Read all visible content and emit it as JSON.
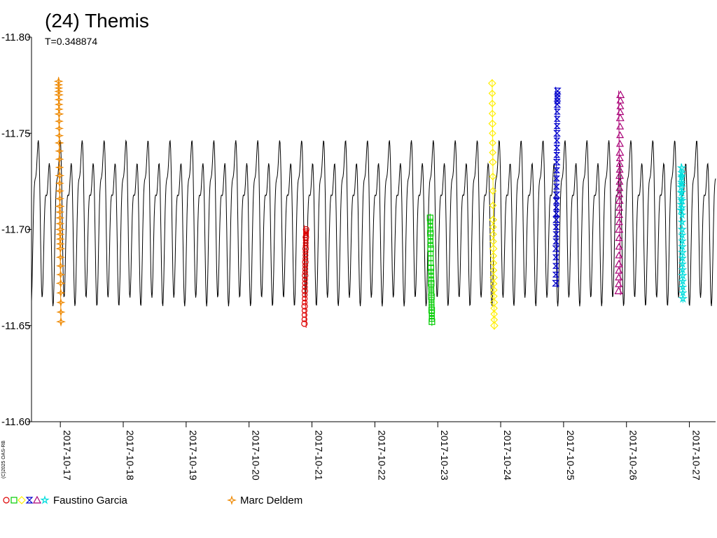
{
  "chart_data": {
    "type": "scatter",
    "title": "(24) Themis",
    "subtitle": "T=0.348874",
    "copyright": "(C)2025 OAS-RB",
    "ylim": [
      -11.8,
      -11.6
    ],
    "y_reversed": true,
    "yticks": [
      "-11.80",
      "-11.75",
      "-11.70",
      "-11.65",
      "-11.60"
    ],
    "xlim": [
      "2017-10-16T13:00",
      "2017-10-27T10:00"
    ],
    "xticks": [
      "2017-10-17",
      "2017-10-18",
      "2017-10-19",
      "2017-10-20",
      "2017-10-21",
      "2017-10-22",
      "2017-10-23",
      "2017-10-24",
      "2017-10-25",
      "2017-10-26",
      "2017-10-27"
    ],
    "grid": false,
    "model_curve": {
      "color": "#000000",
      "mean": -11.708,
      "period_days": 0.348874,
      "harmonics": [
        {
          "amp": 0.033,
          "order": 2,
          "phase": 0.0
        },
        {
          "amp": 0.014,
          "order": 4,
          "phase": 0.7
        },
        {
          "amp": 0.006,
          "order": 1,
          "phase": 1.3
        }
      ]
    },
    "series": [
      {
        "observer": "Faustino Garcia",
        "symbol": "circle",
        "color": "#dd0000",
        "x": [
          "2017-10-20T21:07",
          "2017-10-20T21:12",
          "2017-10-20T21:17",
          "2017-10-20T21:23",
          "2017-10-20T21:29",
          "2017-10-20T21:35",
          "2017-10-20T21:41",
          "2017-10-20T21:47"
        ],
        "y": [
          -11.651,
          -11.66,
          -11.668,
          -11.676,
          -11.683,
          -11.69,
          -11.696,
          -11.7
        ]
      },
      {
        "observer": "Faustino Garcia",
        "symbol": "square",
        "color": "#00cc00",
        "x": [
          "2017-10-22T21:05",
          "2017-10-22T21:11",
          "2017-10-22T21:17",
          "2017-10-22T21:23",
          "2017-10-22T21:29",
          "2017-10-22T21:35",
          "2017-10-22T21:41",
          "2017-10-22T21:46"
        ],
        "y": [
          -11.706,
          -11.698,
          -11.69,
          -11.68,
          -11.672,
          -11.665,
          -11.658,
          -11.652
        ]
      },
      {
        "observer": "Faustino Garcia",
        "symbol": "diamond",
        "color": "#ffee00",
        "x": [
          "2017-10-23T20:45",
          "2017-10-23T20:52",
          "2017-10-23T20:59",
          "2017-10-23T21:06",
          "2017-10-23T21:13",
          "2017-10-23T21:20",
          "2017-10-23T21:27",
          "2017-10-23T21:34"
        ],
        "y": [
          -11.776,
          -11.755,
          -11.735,
          -11.705,
          -11.69,
          -11.675,
          -11.662,
          -11.65
        ]
      },
      {
        "observer": "Faustino Garcia",
        "symbol": "bowtie",
        "color": "#0000cc",
        "x": [
          "2017-10-24T21:00",
          "2017-10-24T21:06",
          "2017-10-24T21:12",
          "2017-10-24T21:18",
          "2017-10-24T21:24",
          "2017-10-24T21:30",
          "2017-10-24T21:36",
          "2017-10-24T21:42"
        ],
        "y": [
          -11.672,
          -11.69,
          -11.705,
          -11.718,
          -11.735,
          -11.75,
          -11.765,
          -11.772
        ]
      },
      {
        "observer": "Faustino Garcia",
        "symbol": "triangle",
        "color": "#aa0077",
        "x": [
          "2017-10-25T21:00",
          "2017-10-25T21:06",
          "2017-10-25T21:12",
          "2017-10-25T21:18",
          "2017-10-25T21:24",
          "2017-10-25T21:30",
          "2017-10-25T21:36",
          "2017-10-25T21:42"
        ],
        "y": [
          -11.668,
          -11.682,
          -11.7,
          -11.715,
          -11.728,
          -11.74,
          -11.758,
          -11.77
        ]
      },
      {
        "observer": "Faustino Garcia",
        "symbol": "star",
        "color": "#00dddd",
        "x": [
          "2017-10-26T20:50",
          "2017-10-26T20:56",
          "2017-10-26T21:02",
          "2017-10-26T21:08",
          "2017-10-26T21:14",
          "2017-10-26T21:20",
          "2017-10-26T21:26",
          "2017-10-26T21:32"
        ],
        "y": [
          -11.71,
          -11.722,
          -11.732,
          -11.715,
          -11.7,
          -11.688,
          -11.676,
          -11.664
        ]
      },
      {
        "observer": "Marc Deldem",
        "symbol": "sparkle",
        "color": "#ee8800",
        "x": [
          "2017-10-16T23:20",
          "2017-10-16T23:26",
          "2017-10-16T23:32",
          "2017-10-16T23:38",
          "2017-10-16T23:44",
          "2017-10-16T23:50",
          "2017-10-16T23:56",
          "2017-10-17T00:02",
          "2017-10-17T00:08",
          "2017-10-17T00:14"
        ],
        "y": [
          -11.777,
          -11.77,
          -11.76,
          -11.745,
          -11.728,
          -11.712,
          -11.7,
          -11.69,
          -11.672,
          -11.652
        ]
      }
    ],
    "legend": [
      {
        "label": "Faustino Garcia",
        "symbols": [
          "circle",
          "square",
          "diamond",
          "bowtie",
          "triangle",
          "star"
        ],
        "colors": [
          "#dd0000",
          "#00cc00",
          "#ffee00",
          "#0000cc",
          "#aa0077",
          "#00dddd"
        ]
      },
      {
        "label": "Marc Deldem",
        "symbols": [
          "sparkle"
        ],
        "colors": [
          "#ee8800"
        ]
      }
    ]
  }
}
